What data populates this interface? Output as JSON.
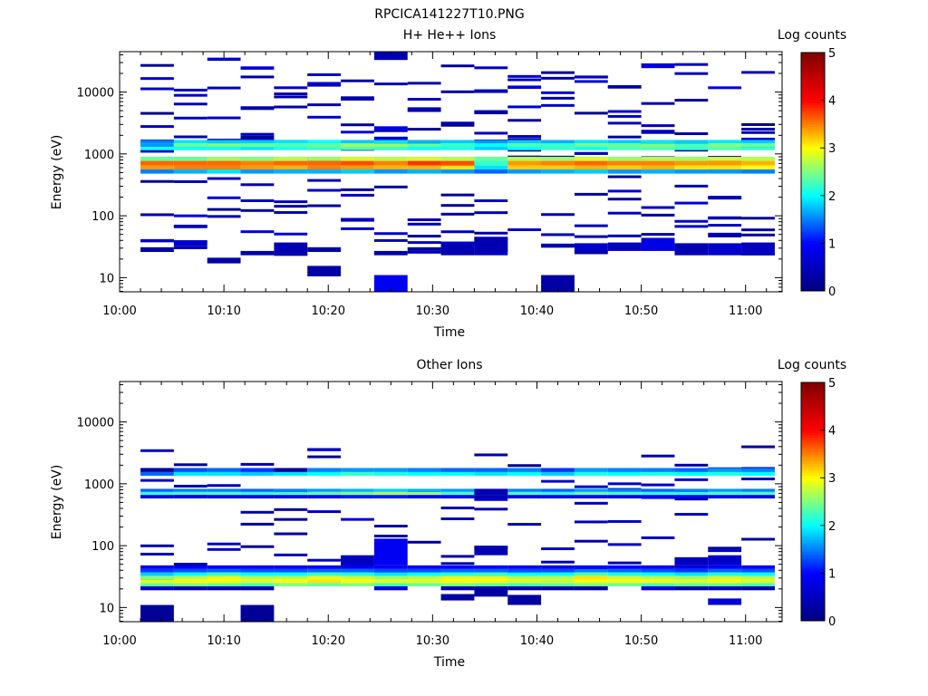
{
  "figure_title": "RPCICA141227T10.PNG",
  "chart_data": [
    {
      "type": "heatmap",
      "title": "H+ He++ Ions",
      "xlabel": "Time",
      "ylabel": "Energy (eV)",
      "colorbar_label": "Log counts",
      "colorbar_ticks": [
        "0",
        "1",
        "2",
        "3",
        "4",
        "5"
      ],
      "clim": [
        0,
        5
      ],
      "colormap": [
        "#00007f",
        "#0000ff",
        "#00ffff",
        "#ffff00",
        "#ff0000",
        "#7f0000"
      ],
      "x_ticks": [
        "10:00",
        "10:10",
        "10:20",
        "10:30",
        "10:40",
        "10:50",
        "11:00"
      ],
      "x_range_min": [
        0,
        63.5
      ],
      "y_ticks": [
        "10",
        "100",
        "1000",
        "10000"
      ],
      "y_tick_values": [
        10,
        100,
        1000,
        10000
      ],
      "y_range_ev": [
        5.9,
        45000
      ],
      "y_scale": "log",
      "time_bin_starts_min": [
        2,
        5.2,
        8.4,
        11.6,
        14.8,
        18,
        21.2,
        24.4,
        27.6,
        30.8,
        34,
        37.2,
        40.4,
        43.6,
        46.8,
        50,
        53.2,
        56.4,
        59.6
      ],
      "time_bin_width_min": 3.2,
      "persistent_bands": [
        {
          "energy_ev": [
            1150,
            1300
          ],
          "values": [
            2.1,
            2.0,
            2.0,
            1.9,
            2.1,
            2.2,
            2.3,
            2.2,
            2.0,
            2.1,
            1.8,
            2.0,
            2.2,
            2.0,
            2.3,
            2.3,
            2.2,
            2.3,
            2.2
          ]
        },
        {
          "energy_ev": [
            1300,
            1480
          ],
          "values": [
            1.6,
            2.4,
            2.5,
            2.4,
            2.3,
            2.4,
            2.6,
            2.6,
            2.4,
            2.2,
            2.0,
            2.3,
            2.2,
            2.5,
            2.4,
            2.5,
            2.3,
            2.5,
            2.4
          ]
        },
        {
          "energy_ev": [
            1480,
            1680
          ],
          "values": [
            1.5,
            1.9,
            1.8,
            1.8,
            1.9,
            2.0,
            1.8,
            1.9,
            1.7,
            1.8,
            1.6,
            1.8,
            1.7,
            1.9,
            1.8,
            1.9,
            1.8,
            1.9,
            1.8
          ]
        },
        {
          "energy_ev": [
            770,
            900
          ],
          "values": [
            2.4,
            2.4,
            2.6,
            2.5,
            2.7,
            2.6,
            2.8,
            2.7,
            2.8,
            2.7,
            2.4,
            2.7,
            2.6,
            2.8,
            2.6,
            2.7,
            2.6,
            2.8,
            2.7
          ]
        },
        {
          "energy_ev": [
            650,
            770
          ],
          "values": [
            3.6,
            3.6,
            3.6,
            3.5,
            3.6,
            3.6,
            3.7,
            3.5,
            3.8,
            3.7,
            2.2,
            3.4,
            3.5,
            3.6,
            3.5,
            3.5,
            3.4,
            3.4,
            3.3
          ]
        },
        {
          "energy_ev": [
            560,
            650
          ],
          "values": [
            3.4,
            3.5,
            3.5,
            3.4,
            3.3,
            3.5,
            3.4,
            3.3,
            3.3,
            3.1,
            1.9,
            3.2,
            3.2,
            3.3,
            3.2,
            3.3,
            3.1,
            3.1,
            3.0
          ]
        },
        {
          "energy_ev": [
            480,
            560
          ],
          "values": [
            1.5,
            1.7,
            1.9,
            1.6,
            1.7,
            1.7,
            1.8,
            1.6,
            1.7,
            1.6,
            1.4,
            1.6,
            1.7,
            1.8,
            1.6,
            1.7,
            1.6,
            1.6,
            1.5
          ]
        }
      ],
      "sparse_cells": [
        {
          "t": 0,
          "e": [
            26,
            31
          ],
          "v": 0.3
        },
        {
          "t": 1,
          "e": [
            32,
            38
          ],
          "v": 0.6
        },
        {
          "t": 2,
          "e": [
            17,
            21
          ],
          "v": 0.3
        },
        {
          "t": 3,
          "e": [
            23,
            27
          ],
          "v": 0.3
        },
        {
          "t": 4,
          "e": [
            23,
            37
          ],
          "v": 0.4
        },
        {
          "t": 5,
          "e": [
            26,
            31
          ],
          "v": 0.3
        },
        {
          "t": 5,
          "e": [
            10.5,
            15.5
          ],
          "v": 0.3
        },
        {
          "t": 7,
          "e": [
            23,
            27
          ],
          "v": 0.3
        },
        {
          "t": 7,
          "e": [
            5.9,
            11
          ],
          "v": 0.9
        },
        {
          "t": 8,
          "e": [
            27,
            31
          ],
          "v": 0.3
        },
        {
          "t": 9,
          "e": [
            23,
            36
          ],
          "v": 0.4
        },
        {
          "t": 10,
          "e": [
            23,
            44
          ],
          "v": 0.5
        },
        {
          "t": 12,
          "e": [
            5.9,
            11
          ],
          "v": 0.3
        },
        {
          "t": 13,
          "e": [
            27,
            36
          ],
          "v": 0.6
        },
        {
          "t": 14,
          "e": [
            27,
            37
          ],
          "v": 0.5
        },
        {
          "t": 15,
          "e": [
            27,
            44
          ],
          "v": 0.8
        },
        {
          "t": 16,
          "e": [
            23,
            36
          ],
          "v": 0.4
        },
        {
          "t": 17,
          "e": [
            23,
            36
          ],
          "v": 0.6
        },
        {
          "t": 18,
          "e": [
            23,
            37
          ],
          "v": 0.5
        },
        {
          "t": 7,
          "e": [
            2400,
            2800
          ],
          "v": 0.8
        },
        {
          "t": 7,
          "e": [
            33000,
            45000
          ],
          "v": 0.4
        },
        {
          "t": 2,
          "e": [
            32000,
            36000
          ],
          "v": 0.7
        },
        {
          "t": 3,
          "e": [
            23000,
            26000
          ],
          "v": 0.7
        },
        {
          "t": 10,
          "e": [
            26,
            44
          ],
          "v": 0.4
        }
      ],
      "scatter_lines": 11
    },
    {
      "type": "heatmap",
      "title": "Other Ions",
      "xlabel": "Time",
      "ylabel": "Energy (eV)",
      "colorbar_label": "Log counts",
      "colorbar_ticks": [
        "0",
        "1",
        "2",
        "3",
        "4",
        "5"
      ],
      "clim": [
        0,
        5
      ],
      "colormap": [
        "#00007f",
        "#0000ff",
        "#00ffff",
        "#ffff00",
        "#ff0000",
        "#7f0000"
      ],
      "x_ticks": [
        "10:00",
        "10:10",
        "10:20",
        "10:30",
        "10:40",
        "10:50",
        "11:00"
      ],
      "x_range_min": [
        0,
        63.5
      ],
      "y_ticks": [
        "10",
        "100",
        "1000",
        "10000"
      ],
      "y_tick_values": [
        10,
        100,
        1000,
        10000
      ],
      "y_range_ev": [
        5.9,
        45000
      ],
      "y_scale": "log",
      "time_bin_starts_min": [
        2,
        5.2,
        8.4,
        11.6,
        14.8,
        18,
        21.2,
        24.4,
        27.6,
        30.8,
        34,
        37.2,
        40.4,
        43.6,
        46.8,
        50,
        53.2,
        56.4,
        59.6
      ],
      "time_bin_width_min": 3.2,
      "persistent_bands": [
        {
          "energy_ev": [
            1350,
            1550
          ],
          "values": [
            1.4,
            1.9,
            1.9,
            1.8,
            1.9,
            2.0,
            2.2,
            2.1,
            2.0,
            2.0,
            1.9,
            2.0,
            1.8,
            2.1,
            2.0,
            2.1,
            2.0,
            2.1,
            2.0
          ]
        },
        {
          "energy_ev": [
            1550,
            1800
          ],
          "values": [
            0.2,
            1.3,
            1.4,
            1.2,
            0.2,
            1.5,
            1.6,
            1.6,
            1.5,
            1.4,
            1.4,
            1.5,
            1.2,
            1.6,
            1.5,
            1.5,
            1.4,
            1.6,
            1.5
          ]
        },
        {
          "energy_ev": [
            660,
            740
          ],
          "values": [
            2.2,
            2.3,
            2.3,
            2.2,
            2.3,
            2.4,
            2.5,
            2.7,
            2.6,
            2.3,
            0.6,
            2.3,
            2.2,
            2.4,
            2.3,
            2.2,
            2.2,
            2.3,
            2.3
          ]
        },
        {
          "energy_ev": [
            740,
            830
          ],
          "values": [
            1.4,
            1.5,
            1.5,
            1.4,
            1.5,
            1.6,
            1.7,
            1.8,
            1.7,
            1.6,
            0.5,
            1.5,
            1.4,
            1.6,
            1.5,
            1.4,
            1.5,
            1.6,
            1.5
          ]
        },
        {
          "energy_ev": [
            580,
            660
          ],
          "values": [
            0.8,
            0.9,
            0.9,
            0.8,
            0.9,
            1.0,
            1.1,
            1.1,
            1.0,
            1.0,
            0.4,
            0.9,
            0.9,
            1.0,
            0.9,
            0.9,
            0.9,
            1.0,
            0.9
          ]
        },
        {
          "energy_ev": [
            22,
            25
          ],
          "values": [
            2.4,
            2.5,
            2.4,
            2.3,
            2.5,
            2.4,
            2.5,
            2.3,
            2.4,
            2.5,
            2.4,
            2.3,
            2.4,
            2.5,
            2.4,
            2.3,
            2.4,
            2.4,
            2.3
          ]
        },
        {
          "energy_ev": [
            25,
            28.5
          ],
          "values": [
            2.9,
            3.0,
            3.0,
            2.9,
            3.0,
            3.1,
            3.0,
            2.9,
            2.9,
            3.0,
            3.0,
            2.9,
            2.8,
            3.0,
            3.0,
            3.0,
            2.9,
            3.0,
            2.9
          ]
        },
        {
          "energy_ev": [
            28.5,
            32.5
          ],
          "values": [
            2.5,
            2.7,
            2.9,
            2.7,
            2.7,
            2.9,
            2.8,
            2.6,
            2.7,
            2.9,
            2.9,
            2.7,
            2.7,
            3.1,
            2.8,
            2.7,
            2.6,
            2.8,
            2.7
          ]
        },
        {
          "energy_ev": [
            32.5,
            37
          ],
          "values": [
            1.8,
            2.0,
            2.2,
            2.0,
            2.0,
            2.2,
            2.1,
            1.9,
            2.0,
            2.1,
            2.2,
            2.0,
            2.0,
            2.3,
            2.1,
            2.0,
            1.9,
            2.1,
            2.0
          ]
        },
        {
          "energy_ev": [
            37,
            42
          ],
          "values": [
            1.2,
            1.3,
            1.4,
            1.3,
            1.3,
            1.4,
            1.4,
            1.3,
            1.3,
            1.4,
            1.4,
            1.3,
            1.3,
            1.5,
            1.4,
            1.3,
            1.2,
            1.4,
            1.3
          ]
        },
        {
          "energy_ev": [
            42,
            48
          ],
          "values": [
            0.8,
            0.9,
            1.0,
            0.9,
            0.9,
            1.0,
            1.0,
            0.9,
            0.9,
            1.0,
            1.0,
            0.9,
            0.9,
            1.0,
            1.0,
            0.9,
            0.8,
            1.0,
            0.9
          ]
        },
        {
          "energy_ev": [
            19,
            22
          ],
          "values": [
            0.5,
            0.4,
            0.4,
            0.4,
            0.0,
            0.0,
            0.0,
            0.8,
            0.0,
            0.4,
            0.3,
            0.3,
            0.3,
            0.3,
            0.0,
            0.7,
            0.3,
            0.5,
            0.3
          ]
        }
      ],
      "sparse_cells": [
        {
          "t": 0,
          "e": [
            5.9,
            11
          ],
          "v": 0.2
        },
        {
          "t": 3,
          "e": [
            5.9,
            11
          ],
          "v": 0.2
        },
        {
          "t": 7,
          "e": [
            48,
            130
          ],
          "v": 0.9
        },
        {
          "t": 9,
          "e": [
            13,
            16.5
          ],
          "v": 0.3
        },
        {
          "t": 10,
          "e": [
            70,
            100
          ],
          "v": 0.4
        },
        {
          "t": 10,
          "e": [
            15,
            20
          ],
          "v": 0.3
        },
        {
          "t": 11,
          "e": [
            11,
            16
          ],
          "v": 0.3
        },
        {
          "t": 16,
          "e": [
            48,
            65
          ],
          "v": 0.5
        },
        {
          "t": 17,
          "e": [
            11,
            14
          ],
          "v": 0.7
        },
        {
          "t": 17,
          "e": [
            48,
            70
          ],
          "v": 0.6
        },
        {
          "t": 6,
          "e": [
            48,
            70
          ],
          "v": 0.5
        },
        {
          "t": 10,
          "e": [
            660,
            780
          ],
          "v": 0.4
        }
      ],
      "scatter_lines": 7
    }
  ]
}
